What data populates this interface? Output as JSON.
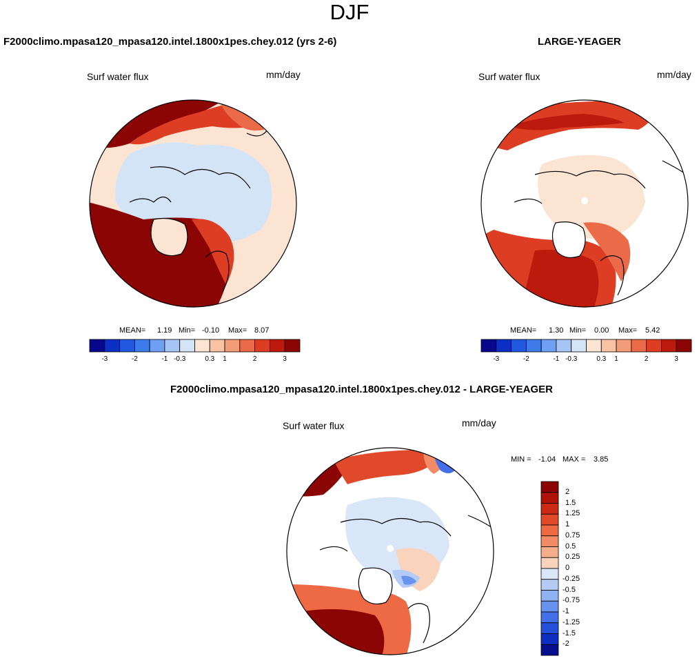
{
  "page_title": "DJF",
  "panels": [
    {
      "case_title": "F2000climo.mpasa120_mpasa120.intel.1800x1pes.chey.012 (yrs 2-6)",
      "variable": "Surf water flux",
      "units": "mm/day",
      "stats": {
        "mean_label": "MEAN=",
        "mean": "1.19",
        "min_label": "Min=",
        "min": "-0.10",
        "max_label": "Max=",
        "max": "8.07"
      }
    },
    {
      "case_title": "LARGE-YEAGER",
      "variable": "Surf water flux",
      "units": "mm/day",
      "stats": {
        "mean_label": "MEAN=",
        "mean": "1.30",
        "min_label": "Min=",
        "min": "0.00",
        "max_label": "Max=",
        "max": "5.42"
      }
    },
    {
      "case_title": "F2000climo.mpasa120_mpasa120.intel.1800x1pes.chey.012 - LARGE-YEAGER",
      "variable": "Surf water flux",
      "units": "mm/day",
      "minmax_label": "MIN =",
      "minmax_min": "-1.04",
      "minmax_mid": "MAX =",
      "minmax_max": "3.85"
    }
  ],
  "chart_data": [
    {
      "type": "polar-contour-map",
      "title": "F2000climo.mpasa120_mpasa120.intel.1800x1pes.chey.012 (yrs 2-6)",
      "variable": "Surf water flux",
      "units": "mm/day",
      "mean": 1.19,
      "min": -0.1,
      "max": 8.07,
      "colorbar_tick_labels": [
        "-3",
        "-2",
        "-1",
        "-0.3",
        "0.3",
        "1",
        "2",
        "3"
      ],
      "colorbar_colors": [
        "#08088c",
        "#0c2fc4",
        "#2059e0",
        "#3d7aea",
        "#6e9ff2",
        "#a6c4f4",
        "#d4e4f7",
        "#fbe4d2",
        "#f7c3a4",
        "#f29c78",
        "#eb6b48",
        "#dd3e23",
        "#bb1a0d",
        "#8b0505"
      ]
    },
    {
      "type": "polar-contour-map",
      "title": "LARGE-YEAGER",
      "variable": "Surf water flux",
      "units": "mm/day",
      "mean": 1.3,
      "min": 0.0,
      "max": 5.42,
      "colorbar_tick_labels": [
        "-3",
        "-2",
        "-1",
        "-0.3",
        "0.3",
        "1",
        "2",
        "3"
      ],
      "colorbar_colors": [
        "#08088c",
        "#0c2fc4",
        "#2059e0",
        "#3d7aea",
        "#6e9ff2",
        "#a6c4f4",
        "#d4e4f7",
        "#fbe4d2",
        "#f7c3a4",
        "#f29c78",
        "#eb6b48",
        "#dd3e23",
        "#bb1a0d",
        "#8b0505"
      ]
    },
    {
      "type": "polar-contour-map",
      "title": "F2000climo.mpasa120_mpasa120.intel.1800x1pes.chey.012 - LARGE-YEAGER",
      "variable": "Surf water flux",
      "units": "mm/day",
      "min": -1.04,
      "max": 3.85,
      "colorbar_tick_labels": [
        "2",
        "1.5",
        "1.25",
        "1",
        "0.75",
        "0.5",
        "0.25",
        "0",
        "-0.25",
        "-0.5",
        "-0.75",
        "-1",
        "-1.25",
        "-1.5",
        "-2"
      ],
      "colorbar_colors": [
        "#8b0505",
        "#b01208",
        "#cc2a14",
        "#e04a2a",
        "#ee6a45",
        "#f28c66",
        "#f5ae8c",
        "#f9d3bc",
        "#d8e6f8",
        "#b4ccf5",
        "#8eb2f2",
        "#6792ee",
        "#4370e8",
        "#2450da",
        "#0e2fc0",
        "#06108c"
      ]
    }
  ]
}
